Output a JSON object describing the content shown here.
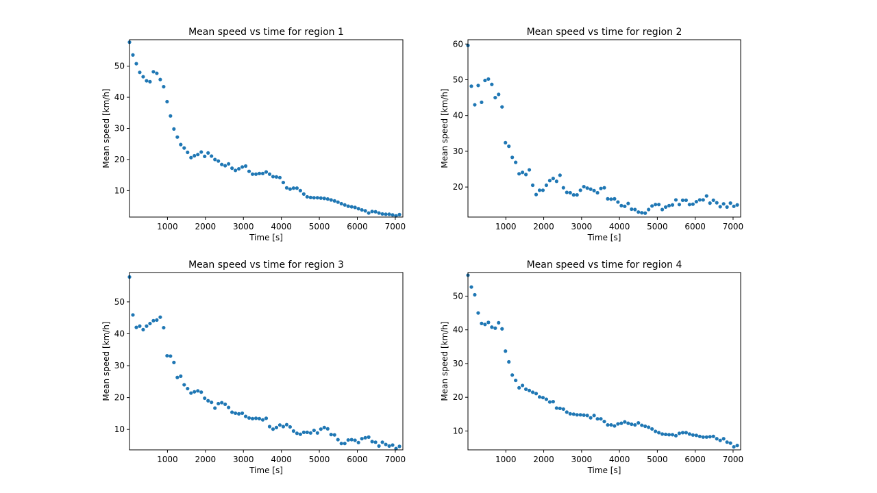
{
  "chart_data": [
    {
      "type": "scatter",
      "title": "Mean speed vs time for region 1",
      "xlabel": "Time [s]",
      "ylabel": "Mean speed [km/h]",
      "xlim": [
        0,
        7200
      ],
      "ylim": [
        1.5,
        58.5
      ],
      "xticks": [
        1000,
        2000,
        3000,
        4000,
        5000,
        6000,
        7000
      ],
      "yticks": [
        10,
        20,
        30,
        40,
        50
      ],
      "grid": false,
      "color": "#1f77b4",
      "series": [
        {
          "x": [
            0,
            90,
            180,
            270,
            360,
            450,
            540,
            630,
            720,
            810,
            900,
            990,
            1080,
            1170,
            1260,
            1350,
            1440,
            1530,
            1620,
            1710,
            1800,
            1890,
            1980,
            2070,
            2160,
            2250,
            2340,
            2430,
            2520,
            2610,
            2700,
            2790,
            2880,
            2970,
            3060,
            3150,
            3240,
            3330,
            3420,
            3510,
            3600,
            3690,
            3780,
            3870,
            3960,
            4050,
            4140,
            4230,
            4320,
            4410,
            4500,
            4590,
            4680,
            4770,
            4860,
            4950,
            5040,
            5130,
            5220,
            5310,
            5400,
            5490,
            5580,
            5670,
            5760,
            5850,
            5940,
            6030,
            6120,
            6210,
            6300,
            6390,
            6480,
            6570,
            6660,
            6750,
            6840,
            6930,
            7020,
            7110
          ],
          "y": [
            57.7,
            53.6,
            50.8,
            48.0,
            46.6,
            45.3,
            45.0,
            48.2,
            47.7,
            45.7,
            43.4,
            38.6,
            34.0,
            29.8,
            27.2,
            24.8,
            23.7,
            22.3,
            20.6,
            21.2,
            21.6,
            22.4,
            21.0,
            22.1,
            21.1,
            20.0,
            19.5,
            18.4,
            18.0,
            18.6,
            17.2,
            16.5,
            17.0,
            17.6,
            17.9,
            16.2,
            15.3,
            15.3,
            15.5,
            15.5,
            16.0,
            15.3,
            14.5,
            14.4,
            14.2,
            12.6,
            10.9,
            10.5,
            10.8,
            10.8,
            10.0,
            8.9,
            8.0,
            7.8,
            7.7,
            7.7,
            7.6,
            7.5,
            7.3,
            7.0,
            6.7,
            6.3,
            5.8,
            5.4,
            5.0,
            4.8,
            4.6,
            4.2,
            3.8,
            3.5,
            2.8,
            3.3,
            3.2,
            2.8,
            2.5,
            2.4,
            2.4,
            2.2,
            1.9,
            2.3
          ]
        }
      ]
    },
    {
      "type": "scatter",
      "title": "Mean speed vs time for region 2",
      "xlabel": "Time [s]",
      "ylabel": "Mean speed [km/h]",
      "xlim": [
        0,
        7200
      ],
      "ylim": [
        11.6,
        61.2
      ],
      "xticks": [
        1000,
        2000,
        3000,
        4000,
        5000,
        6000,
        7000
      ],
      "yticks": [
        20,
        30,
        40,
        50,
        60
      ],
      "grid": false,
      "color": "#1f77b4",
      "series": [
        {
          "x": [
            0,
            90,
            180,
            270,
            360,
            450,
            540,
            630,
            720,
            810,
            900,
            990,
            1080,
            1170,
            1260,
            1350,
            1440,
            1530,
            1620,
            1710,
            1800,
            1890,
            1980,
            2070,
            2160,
            2250,
            2340,
            2430,
            2520,
            2610,
            2700,
            2790,
            2880,
            2970,
            3060,
            3150,
            3240,
            3330,
            3420,
            3510,
            3600,
            3690,
            3780,
            3870,
            3960,
            4050,
            4140,
            4230,
            4320,
            4410,
            4500,
            4590,
            4680,
            4770,
            4860,
            4950,
            5040,
            5130,
            5220,
            5310,
            5400,
            5490,
            5580,
            5670,
            5760,
            5850,
            5940,
            6030,
            6120,
            6210,
            6300,
            6390,
            6480,
            6570,
            6660,
            6750,
            6840,
            6930,
            7020,
            7110
          ],
          "y": [
            59.6,
            48.2,
            43.0,
            48.4,
            43.7,
            49.8,
            50.2,
            48.7,
            45.0,
            45.9,
            42.4,
            32.4,
            31.4,
            28.3,
            26.9,
            23.7,
            24.1,
            23.5,
            24.8,
            20.5,
            17.9,
            19.1,
            19.1,
            20.5,
            21.8,
            22.4,
            21.6,
            23.3,
            19.8,
            18.5,
            18.4,
            17.8,
            17.8,
            19.1,
            20.1,
            19.7,
            19.4,
            19.0,
            18.4,
            19.6,
            19.8,
            16.7,
            16.6,
            16.7,
            15.8,
            14.8,
            14.6,
            15.4,
            13.8,
            13.7,
            13.0,
            12.8,
            12.7,
            13.7,
            14.7,
            15.1,
            15.1,
            13.7,
            14.4,
            14.8,
            15.0,
            16.4,
            15.1,
            16.3,
            16.3,
            15.1,
            15.2,
            15.9,
            16.4,
            16.4,
            17.5,
            15.5,
            16.3,
            15.6,
            14.5,
            15.3,
            14.4,
            15.5,
            14.6,
            15.0
          ]
        }
      ]
    },
    {
      "type": "scatter",
      "title": "Mean speed vs time for region 3",
      "xlabel": "Time [s]",
      "ylabel": "Mean speed [km/h]",
      "xlim": [
        0,
        7200
      ],
      "ylim": [
        3.6,
        59.2
      ],
      "xticks": [
        1000,
        2000,
        3000,
        4000,
        5000,
        6000,
        7000
      ],
      "yticks": [
        10,
        20,
        30,
        40,
        50
      ],
      "grid": false,
      "color": "#1f77b4",
      "series": [
        {
          "x": [
            0,
            90,
            180,
            270,
            360,
            450,
            540,
            630,
            720,
            810,
            900,
            990,
            1080,
            1170,
            1260,
            1350,
            1440,
            1530,
            1620,
            1710,
            1800,
            1890,
            1980,
            2070,
            2160,
            2250,
            2340,
            2430,
            2520,
            2610,
            2700,
            2790,
            2880,
            2970,
            3060,
            3150,
            3240,
            3330,
            3420,
            3510,
            3600,
            3690,
            3780,
            3870,
            3960,
            4050,
            4140,
            4230,
            4320,
            4410,
            4500,
            4590,
            4680,
            4770,
            4860,
            4950,
            5040,
            5130,
            5220,
            5310,
            5400,
            5490,
            5580,
            5670,
            5760,
            5850,
            5940,
            6030,
            6120,
            6210,
            6300,
            6390,
            6480,
            6570,
            6660,
            6750,
            6840,
            6930,
            7020,
            7110
          ],
          "y": [
            57.8,
            45.9,
            42.0,
            42.4,
            41.3,
            42.4,
            43.2,
            44.1,
            44.3,
            45.2,
            41.9,
            33.1,
            33.0,
            31.0,
            26.3,
            26.7,
            24.0,
            22.8,
            21.4,
            21.8,
            22.1,
            21.7,
            19.8,
            19.0,
            18.5,
            16.7,
            18.1,
            18.4,
            17.9,
            16.9,
            15.4,
            15.1,
            14.9,
            15.1,
            14.1,
            13.6,
            13.4,
            13.5,
            13.4,
            13.0,
            13.5,
            10.9,
            10.1,
            10.6,
            11.4,
            10.9,
            11.5,
            10.8,
            9.5,
            8.8,
            8.5,
            9.1,
            9.1,
            8.9,
            9.7,
            8.9,
            10.1,
            10.6,
            10.2,
            8.4,
            8.3,
            6.8,
            5.6,
            5.6,
            6.7,
            6.8,
            6.6,
            5.9,
            7.1,
            7.4,
            7.6,
            6.2,
            6.0,
            4.8,
            6.0,
            5.3,
            4.8,
            5.1,
            4.0,
            4.7
          ]
        }
      ]
    },
    {
      "type": "scatter",
      "title": "Mean speed vs time for region 4",
      "xlabel": "Time [s]",
      "ylabel": "Mean speed [km/h]",
      "xlim": [
        0,
        7200
      ],
      "ylim": [
        4.4,
        57.0
      ],
      "xticks": [
        1000,
        2000,
        3000,
        4000,
        5000,
        6000,
        7000
      ],
      "yticks": [
        10,
        20,
        30,
        40,
        50
      ],
      "grid": false,
      "color": "#1f77b4",
      "series": [
        {
          "x": [
            0,
            90,
            180,
            270,
            360,
            450,
            540,
            630,
            720,
            810,
            900,
            990,
            1080,
            1170,
            1260,
            1350,
            1440,
            1530,
            1620,
            1710,
            1800,
            1890,
            1980,
            2070,
            2160,
            2250,
            2340,
            2430,
            2520,
            2610,
            2700,
            2790,
            2880,
            2970,
            3060,
            3150,
            3240,
            3330,
            3420,
            3510,
            3600,
            3690,
            3780,
            3870,
            3960,
            4050,
            4140,
            4230,
            4320,
            4410,
            4500,
            4590,
            4680,
            4770,
            4860,
            4950,
            5040,
            5130,
            5220,
            5310,
            5400,
            5490,
            5580,
            5670,
            5760,
            5850,
            5940,
            6030,
            6120,
            6210,
            6300,
            6390,
            6480,
            6570,
            6660,
            6750,
            6840,
            6930,
            7020,
            7110
          ],
          "y": [
            56.2,
            52.7,
            50.4,
            45.0,
            41.9,
            41.6,
            42.2,
            40.8,
            40.5,
            42.1,
            40.3,
            33.7,
            30.5,
            26.6,
            25.0,
            22.8,
            23.5,
            22.4,
            22.0,
            21.5,
            21.1,
            20.1,
            19.9,
            19.4,
            18.6,
            18.7,
            16.8,
            16.7,
            16.5,
            15.6,
            15.1,
            15.0,
            14.8,
            14.8,
            14.7,
            14.6,
            13.9,
            14.6,
            13.6,
            13.6,
            12.8,
            11.8,
            11.8,
            11.5,
            12.1,
            12.3,
            12.7,
            12.3,
            12.0,
            11.8,
            12.4,
            11.7,
            11.4,
            11.1,
            10.6,
            9.9,
            9.5,
            9.1,
            9.0,
            8.9,
            8.9,
            8.6,
            9.3,
            9.5,
            9.5,
            9.1,
            8.8,
            8.7,
            8.4,
            8.2,
            8.2,
            8.3,
            8.4,
            7.7,
            7.2,
            7.7,
            6.7,
            6.4,
            5.3,
            5.7
          ]
        }
      ]
    }
  ]
}
